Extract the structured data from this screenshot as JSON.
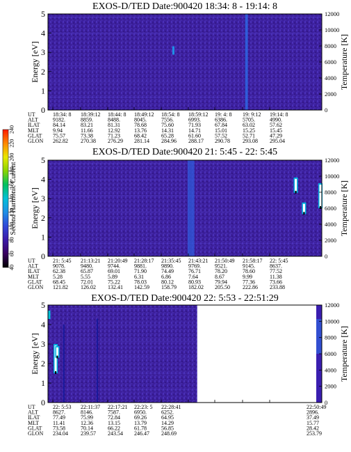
{
  "colorbar": {
    "label": "Second Harmonic Current",
    "ticks": [
      "40",
      "60",
      "80",
      "100",
      "120",
      "140",
      "160",
      "180",
      "200",
      "220",
      "240"
    ],
    "range": [
      40,
      240
    ],
    "colors": [
      "#000000",
      "#3a0060",
      "#3b1aa8",
      "#2f48d8",
      "#1f8fe6",
      "#00c0d8",
      "#00c060",
      "#8ad400",
      "#e8e800",
      "#ff8800",
      "#ff1a00"
    ]
  },
  "panels": [
    {
      "title": "EXOS-D/TED",
      "date": "Date:900420",
      "time_range": "18:34: 8 - 19:14: 8",
      "ylabel": "Energy [eV]",
      "y2label": "Temperature [K]",
      "yticks": [
        "0",
        "1",
        "2",
        "3",
        "4",
        "5"
      ],
      "y2ticks": [
        "0",
        "2000",
        "4000",
        "6000",
        "8000",
        "10000",
        "12000"
      ],
      "data_extent": 1.0,
      "rows": [
        {
          "name": "UT",
          "values": [
            "18:34: 8",
            "18:39:12",
            "18:44: 8",
            "18:49:12",
            "18:54: 8",
            "18:59:12",
            "19: 4: 8",
            "19: 9:12",
            "19:14: 8"
          ]
        },
        {
          "name": "ALT",
          "values": [
            "9182.",
            "8859.",
            "8488.",
            "8045.",
            "7556.",
            "6993.",
            "6386.",
            "5705.",
            "4990."
          ]
        },
        {
          "name": "ILAT",
          "values": [
            "84.14",
            "83.21",
            "81.31",
            "78.68",
            "75.60",
            "71.93",
            "67.84",
            "63.02",
            "57.62"
          ]
        },
        {
          "name": "MLT",
          "values": [
            "9.94",
            "11.66",
            "12.92",
            "13.76",
            "14.31",
            "14.71",
            "15.01",
            "15.25",
            "15.45"
          ]
        },
        {
          "name": "GLAT",
          "values": [
            "75.57",
            "73.38",
            "71.23",
            "68.42",
            "65.28",
            "61.60",
            "57.52",
            "52.71",
            "47.29"
          ]
        },
        {
          "name": "GLON",
          "values": [
            "262.82",
            "270.38",
            "276.29",
            "281.14",
            "284.96",
            "288.17",
            "290.78",
            "293.08",
            "295.04"
          ]
        }
      ],
      "features": [
        {
          "kind": "stripe",
          "x0": 0.72,
          "x1": 0.73,
          "y0": 0.0,
          "y1": 5.0,
          "color": "#2a6ee8"
        },
        {
          "kind": "spot",
          "x": 0.458,
          "y": 3.1,
          "color": "#1f8fe6"
        }
      ]
    },
    {
      "title": "EXOS-D/TED",
      "date": "Date:900420",
      "time_range": "21: 5:45 - 22: 5:45",
      "ylabel": "Energy [eV]",
      "y2label": "Temperature [K]",
      "yticks": [
        "0",
        "1",
        "2",
        "3",
        "4",
        "5"
      ],
      "y2ticks": [
        "0",
        "2000",
        "4000",
        "6000",
        "8000",
        "10000",
        "12000"
      ],
      "data_extent": 1.0,
      "rows": [
        {
          "name": "UT",
          "values": [
            "21: 5:45",
            "21:13:21",
            "21:20:49",
            "21:28:17",
            "21:35:45",
            "21:43:21",
            "21:50:49",
            "21:58:17",
            "22: 5:45"
          ]
        },
        {
          "name": "ALT",
          "values": [
            "9078.",
            "9480.",
            "9744.",
            "9881.",
            "9890.",
            "9769.",
            "9521.",
            "9145.",
            "8637."
          ]
        },
        {
          "name": "ILAT",
          "values": [
            "62.38",
            "65.87",
            "69.01",
            "71.90",
            "74.49",
            "76.71",
            "78.20",
            "78.60",
            "77.52"
          ]
        },
        {
          "name": "MLT",
          "values": [
            "5.28",
            "5.55",
            "5.89",
            "6.31",
            "6.86",
            "7.64",
            "8.67",
            "9.99",
            "11.38"
          ]
        },
        {
          "name": "GLAT",
          "values": [
            "68.45",
            "72.01",
            "75.22",
            "78.03",
            "80.12",
            "80.93",
            "79.94",
            "77.36",
            "73.66"
          ]
        },
        {
          "name": "GLON",
          "values": [
            "121.82",
            "126.02",
            "132.41",
            "142.59",
            "158.79",
            "182.02",
            "205.50",
            "222.86",
            "233.88"
          ]
        }
      ],
      "features": [
        {
          "kind": "stripe",
          "x0": 0.51,
          "x1": 0.535,
          "y0": 0.0,
          "y1": 5.0,
          "color": "#2f5ad8"
        },
        {
          "kind": "streak",
          "x": 0.905,
          "y0": 3.3,
          "y1": 4.1,
          "color": "#ffffff"
        },
        {
          "kind": "streak",
          "x": 0.935,
          "y0": 2.2,
          "y1": 2.8,
          "color": "#ffffff"
        },
        {
          "kind": "streak",
          "x": 0.995,
          "y0": 2.5,
          "y1": 3.8,
          "color": "#ffffff"
        }
      ]
    },
    {
      "title": "EXOS-D/TED",
      "date": "Date:900420",
      "time_range": "22: 5:53 - 22:51:29",
      "ylabel": "Energy [eV]",
      "y2label": "Temperature [K]",
      "yticks": [
        "0",
        "1",
        "2",
        "3",
        "4",
        "5"
      ],
      "y2ticks": [
        "0",
        "2000",
        "4000",
        "6000",
        "8000",
        "10000",
        "12000"
      ],
      "data_extent": 0.545,
      "rows": [
        {
          "name": "UT",
          "values": [
            "22: 5:53",
            "22:11:37",
            "22:17:21",
            "22:23: 5",
            "22:28:41",
            "",
            "",
            "",
            "22:50:49"
          ]
        },
        {
          "name": "ALT",
          "values": [
            "8627.",
            "8146.",
            "7587.",
            "6950.",
            "6252.",
            "",
            "",
            "",
            "2896."
          ]
        },
        {
          "name": "ILAT",
          "values": [
            "77.49",
            "75.99",
            "72.84",
            "69.26",
            "64.95",
            "",
            "",
            "",
            "37.49"
          ]
        },
        {
          "name": "MLT",
          "values": [
            "11.41",
            "12.36",
            "13.15",
            "13.79",
            "14.29",
            "",
            "",
            "",
            "15.77"
          ]
        },
        {
          "name": "GLAT",
          "values": [
            "73.58",
            "70.14",
            "66.22",
            "61.78",
            "56.85",
            "",
            "",
            "",
            "28.42"
          ]
        },
        {
          "name": "GLON",
          "values": [
            "234.04",
            "239.57",
            "243.54",
            "246.47",
            "248.69",
            "",
            "",
            "",
            "253.79"
          ]
        }
      ],
      "features": [
        {
          "kind": "streak",
          "x": 0.028,
          "y0": 1.5,
          "y1": 3.0,
          "color": "#ffffff"
        },
        {
          "kind": "streak",
          "x": 0.034,
          "y0": 2.3,
          "y1": 2.9,
          "color": "#ffffff"
        },
        {
          "kind": "spot",
          "x": 0.005,
          "y": 4.5,
          "color": "#00c0d8"
        },
        {
          "kind": "line",
          "x": 0.058,
          "y0": 0.0,
          "y1": 4.0,
          "color": "#18189a"
        },
        {
          "kind": "line",
          "x": 0.18,
          "y0": 0.0,
          "y1": 4.3,
          "color": "#18189a"
        }
      ]
    }
  ]
}
